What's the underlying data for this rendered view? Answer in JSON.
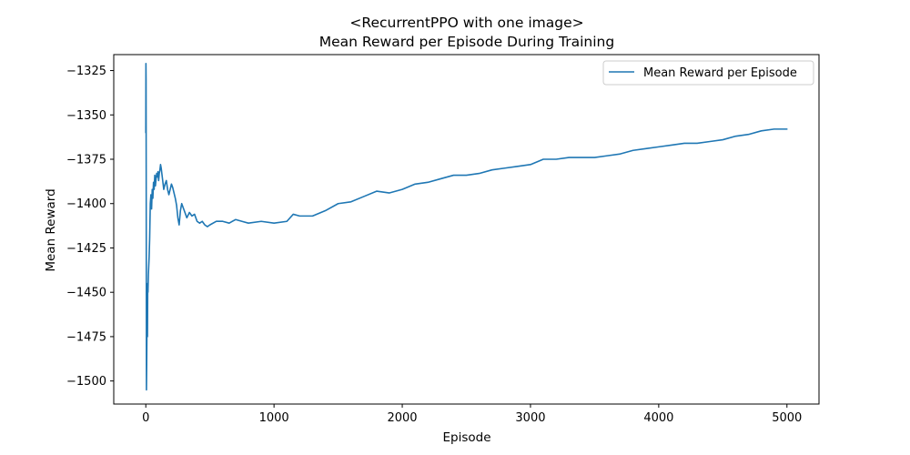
{
  "chart_data": {
    "type": "line",
    "title_line1": "<RecurrentPPO with one image>",
    "title_line2": "Mean Reward per Episode During Training",
    "xlabel": "Episode",
    "ylabel": "Mean Reward",
    "xlim": [
      -250,
      5250
    ],
    "ylim": [
      -1513,
      -1316
    ],
    "x_ticks": [
      0,
      1000,
      2000,
      3000,
      4000,
      5000
    ],
    "y_ticks": [
      -1500,
      -1475,
      -1450,
      -1425,
      -1400,
      -1375,
      -1350,
      -1325
    ],
    "x_tick_labels": [
      "0",
      "1000",
      "2000",
      "3000",
      "4000",
      "5000"
    ],
    "y_tick_labels": [
      "−1500",
      "−1475",
      "−1450",
      "−1425",
      "−1400",
      "−1375",
      "−1350",
      "−1325"
    ],
    "grid": false,
    "legend_position": "top-right",
    "color": "#1f77b4",
    "series": [
      {
        "name": "Mean Reward per Episode",
        "x": [
          0,
          1,
          2,
          3,
          4,
          5,
          7,
          9,
          11,
          13,
          15,
          17,
          20,
          23,
          26,
          30,
          35,
          40,
          45,
          50,
          55,
          60,
          65,
          70,
          75,
          80,
          85,
          90,
          95,
          100,
          105,
          110,
          115,
          120,
          125,
          130,
          140,
          150,
          160,
          170,
          180,
          190,
          200,
          210,
          220,
          230,
          240,
          250,
          260,
          270,
          280,
          290,
          300,
          320,
          340,
          360,
          380,
          400,
          420,
          440,
          460,
          480,
          500,
          550,
          600,
          650,
          700,
          750,
          800,
          900,
          1000,
          1100,
          1150,
          1200,
          1300,
          1400,
          1500,
          1600,
          1700,
          1800,
          1900,
          2000,
          2100,
          2200,
          2300,
          2400,
          2500,
          2600,
          2700,
          2800,
          2900,
          3000,
          3100,
          3200,
          3300,
          3400,
          3500,
          3600,
          3700,
          3800,
          3900,
          4000,
          4100,
          4200,
          4300,
          4400,
          4500,
          4600,
          4700,
          4800,
          4900,
          5000
        ],
        "y": [
          -1360,
          -1321,
          -1330,
          -1380,
          -1440,
          -1505,
          -1490,
          -1470,
          -1455,
          -1475,
          -1445,
          -1450,
          -1440,
          -1435,
          -1430,
          -1420,
          -1400,
          -1395,
          -1403,
          -1392,
          -1397,
          -1388,
          -1392,
          -1384,
          -1390,
          -1386,
          -1383,
          -1385,
          -1382,
          -1387,
          -1383,
          -1381,
          -1378,
          -1380,
          -1383,
          -1386,
          -1392,
          -1389,
          -1387,
          -1392,
          -1395,
          -1392,
          -1389,
          -1391,
          -1394,
          -1397,
          -1401,
          -1408,
          -1412,
          -1404,
          -1400,
          -1402,
          -1404,
          -1408,
          -1405,
          -1407,
          -1406,
          -1410,
          -1411,
          -1410,
          -1412,
          -1413,
          -1412,
          -1410,
          -1410,
          -1411,
          -1409,
          -1410,
          -1411,
          -1410,
          -1411,
          -1410,
          -1406,
          -1407,
          -1407,
          -1404,
          -1400,
          -1399,
          -1396,
          -1393,
          -1394,
          -1392,
          -1389,
          -1388,
          -1386,
          -1384,
          -1384,
          -1383,
          -1381,
          -1380,
          -1379,
          -1378,
          -1375,
          -1375,
          -1374,
          -1374,
          -1374,
          -1373,
          -1372,
          -1370,
          -1369,
          -1368,
          -1367,
          -1366,
          -1366,
          -1365,
          -1364,
          -1362,
          -1361,
          -1359,
          -1358,
          -1358
        ]
      }
    ]
  }
}
